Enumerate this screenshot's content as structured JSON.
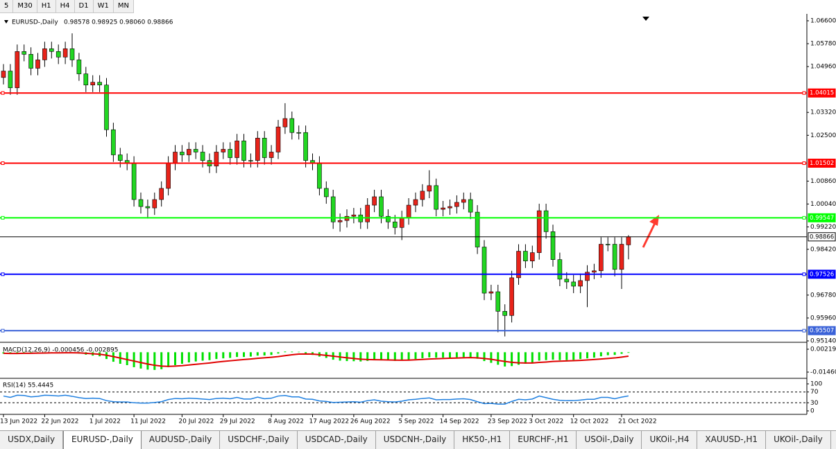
{
  "toolbar": {
    "timeframes": [
      "5",
      "M30",
      "H1",
      "H4",
      "D1",
      "W1",
      "MN"
    ]
  },
  "chart_data": [
    {
      "type": "candlestick",
      "title": "EURUSD-,Daily",
      "subtitle": "0.98578 0.98925 0.98060 0.98866",
      "up_color": "#e8231a",
      "down_color": "#22d622",
      "categories": [
        "13 Jun 2022",
        null,
        null,
        null,
        null,
        null,
        "22 Jun 2022",
        null,
        null,
        null,
        null,
        null,
        null,
        "1 Jul 2022",
        null,
        null,
        null,
        null,
        null,
        "11 Jul 2022",
        null,
        null,
        null,
        null,
        null,
        null,
        "20 Jul 2022",
        null,
        null,
        null,
        null,
        null,
        "29 Jul 2022",
        null,
        null,
        null,
        null,
        null,
        null,
        "8 Aug 2022",
        null,
        null,
        null,
        null,
        null,
        "17 Aug 2022",
        null,
        null,
        null,
        null,
        null,
        "26 Aug 2022",
        null,
        null,
        null,
        null,
        null,
        null,
        "5 Sep 2022",
        null,
        null,
        null,
        null,
        null,
        "14 Sep 2022",
        null,
        null,
        null,
        null,
        null,
        null,
        "23 Sep 2022",
        null,
        null,
        null,
        null,
        null,
        "3 Oct 2022",
        null,
        null,
        null,
        null,
        null,
        "12 Oct 2022",
        null,
        null,
        null,
        null,
        null,
        null,
        "21 Oct 2022",
        null
      ],
      "open": [
        1.0457,
        1.048,
        1.042,
        1.055,
        1.054,
        1.049,
        1.052,
        1.056,
        1.055,
        1.053,
        1.056,
        1.052,
        1.047,
        1.043,
        1.044,
        1.043,
        1.027,
        1.018,
        1.016,
        1.015,
        1.002,
        0.9995,
        0.999,
        1.002,
        1.006,
        1.015,
        1.019,
        1.018,
        1.02,
        1.019,
        1.016,
        1.014,
        1.019,
        1.02,
        1.017,
        1.023,
        1.016,
        1.016,
        1.024,
        1.017,
        1.019,
        1.028,
        1.031,
        1.026,
        1.026,
        1.016,
        1.015,
        1.006,
        1.003,
        0.994,
        0.9945,
        0.996,
        0.9965,
        0.994,
        1.0,
        1.003,
        0.996,
        0.994,
        0.992,
        0.9955,
        1.0,
        1.002,
        1.005,
        1.007,
        0.9985,
        0.999,
        0.9995,
        1.001,
        1.002,
        0.9975,
        0.985,
        0.9685,
        0.969,
        0.962,
        0.9605,
        0.974,
        0.9835,
        0.98,
        0.983,
        0.998,
        0.9905,
        0.9805,
        0.9735,
        0.9725,
        0.971,
        0.973,
        0.976,
        0.9765,
        0.986,
        0.986,
        0.977,
        0.98578
      ],
      "high": [
        1.0505,
        1.0505,
        1.0575,
        1.0575,
        1.0565,
        1.0545,
        1.0585,
        1.0585,
        1.0575,
        1.0585,
        1.0615,
        1.0545,
        1.0495,
        1.0465,
        1.0465,
        1.0455,
        1.0295,
        1.0205,
        1.0185,
        1.0175,
        1.0045,
        1.002,
        1.0045,
        1.0085,
        1.0175,
        1.0215,
        1.0215,
        1.0225,
        1.0225,
        1.0215,
        1.0185,
        1.0215,
        1.0225,
        1.0225,
        1.0255,
        1.0255,
        1.0185,
        1.0265,
        1.0265,
        1.0215,
        1.0305,
        1.0365,
        1.0335,
        1.0285,
        1.0285,
        1.0185,
        1.0175,
        1.0085,
        1.0055,
        0.997,
        0.9985,
        0.999,
        0.999,
        1.0025,
        1.0055,
        1.0055,
        0.9985,
        0.9965,
        0.998,
        1.0025,
        1.0045,
        1.0075,
        1.0125,
        1.0095,
        1.0015,
        1.002,
        1.0035,
        1.0045,
        1.0045,
        1.0,
        0.9875,
        0.9715,
        0.9715,
        0.9645,
        0.9765,
        0.986,
        0.986,
        0.9855,
        1.0005,
        1.0005,
        0.993,
        0.983,
        0.976,
        0.975,
        0.9755,
        0.9785,
        0.979,
        0.9885,
        0.9885,
        0.9885,
        0.9885,
        0.98925
      ],
      "low": [
        1.0432,
        1.0395,
        1.0395,
        1.0515,
        1.0465,
        1.0465,
        1.0495,
        1.0525,
        1.0505,
        1.0505,
        1.0495,
        1.0445,
        1.0405,
        1.0405,
        1.0405,
        1.0245,
        1.0155,
        1.0135,
        1.0125,
        0.9995,
        0.997,
        0.9952,
        0.9965,
        0.9995,
        1.0035,
        1.0125,
        1.0155,
        1.0155,
        1.0165,
        1.0135,
        1.0115,
        1.0115,
        1.0165,
        1.0145,
        1.0145,
        1.0135,
        1.0135,
        1.0135,
        1.0145,
        1.0145,
        1.0165,
        1.0255,
        1.0235,
        1.0235,
        1.0135,
        1.0125,
        1.0035,
        1.0005,
        0.9915,
        0.9905,
        0.992,
        0.9935,
        0.9915,
        0.9915,
        0.9975,
        0.9935,
        0.9915,
        0.9895,
        0.9875,
        0.993,
        0.9975,
        0.9995,
        1.0025,
        0.996,
        0.996,
        0.9965,
        0.997,
        0.9985,
        0.995,
        0.9825,
        0.966,
        0.966,
        0.9545,
        0.953,
        0.958,
        0.9715,
        0.9775,
        0.9775,
        0.9805,
        0.988,
        0.978,
        0.971,
        0.97,
        0.9685,
        0.9685,
        0.9635,
        0.9735,
        0.974,
        0.9835,
        0.9745,
        0.97,
        0.9806
      ],
      "close": [
        1.048,
        1.042,
        1.055,
        1.054,
        1.049,
        1.052,
        1.056,
        1.055,
        1.053,
        1.056,
        1.052,
        1.047,
        1.043,
        1.044,
        1.043,
        1.027,
        1.018,
        1.016,
        1.015,
        1.002,
        0.9995,
        0.999,
        1.002,
        1.006,
        1.015,
        1.019,
        1.018,
        1.02,
        1.019,
        1.016,
        1.014,
        1.019,
        1.02,
        1.017,
        1.023,
        1.016,
        1.016,
        1.024,
        1.017,
        1.019,
        1.028,
        1.031,
        1.026,
        1.026,
        1.016,
        1.015,
        1.006,
        1.003,
        0.994,
        0.9945,
        0.996,
        0.9965,
        0.994,
        1.0,
        1.003,
        0.996,
        0.994,
        0.992,
        0.9955,
        1.0,
        1.002,
        1.005,
        1.007,
        0.9985,
        0.999,
        0.9995,
        1.001,
        1.002,
        0.9975,
        0.985,
        0.9685,
        0.969,
        0.962,
        0.9605,
        0.974,
        0.9835,
        0.98,
        0.983,
        0.998,
        0.9905,
        0.9805,
        0.9735,
        0.9725,
        0.971,
        0.973,
        0.976,
        0.9765,
        0.986,
        0.986,
        0.977,
        0.986,
        0.98866
      ],
      "ylim": [
        0.95115,
        1.06798
      ],
      "yticks": [
        {
          "value": 1.066,
          "label": "1.06600"
        },
        {
          "value": 1.0578,
          "label": "1.05780"
        },
        {
          "value": 1.0496,
          "label": "1.04960"
        },
        {
          "value": 1.0332,
          "label": "1.03320"
        },
        {
          "value": 1.025,
          "label": "1.02500"
        },
        {
          "value": 1.0086,
          "label": "1.00860"
        },
        {
          "value": 1.0004,
          "label": "1.00040"
        },
        {
          "value": 0.9922,
          "label": "0.99220"
        },
        {
          "value": 0.9842,
          "label": "0.98420"
        },
        {
          "value": 0.9678,
          "label": "0.96780"
        },
        {
          "value": 0.9596,
          "label": "0.95960"
        },
        {
          "value": 0.9514,
          "label": "0.95140"
        }
      ],
      "level_values": [
        1.04015,
        1.01502,
        0.99547,
        0.98866,
        0.97526,
        0.95507
      ],
      "level_colors": [
        "#ff0000",
        "#ff0000",
        "#00ff00",
        "#000000",
        "#0000ff",
        "#3a62d8"
      ]
    },
    {
      "type": "bar",
      "title": "MACD(12,26,9) -0.000456 -0.002895",
      "series": [
        {
          "color": "#00e000",
          "values": [
            -0.001,
            -0.0012,
            -0.0008,
            -0.0006,
            -0.0007,
            -0.0005,
            -0.0003,
            -0.0002,
            -0.0003,
            -0.0002,
            -0.0004,
            -0.001,
            -0.0018,
            -0.0025,
            -0.003,
            -0.005,
            -0.007,
            -0.0085,
            -0.0095,
            -0.011,
            -0.012,
            -0.0128,
            -0.013,
            -0.0125,
            -0.011,
            -0.0095,
            -0.0085,
            -0.0075,
            -0.0068,
            -0.0062,
            -0.0058,
            -0.005,
            -0.0045,
            -0.0042,
            -0.0035,
            -0.0035,
            -0.0032,
            -0.0025,
            -0.0024,
            -0.002,
            -0.001,
            0.0005,
            0.0004,
            0.0003,
            -0.001,
            -0.002,
            -0.0032,
            -0.0042,
            -0.0055,
            -0.0062,
            -0.0065,
            -0.0066,
            -0.0068,
            -0.0064,
            -0.0058,
            -0.006,
            -0.0062,
            -0.0064,
            -0.0062,
            -0.0056,
            -0.005,
            -0.0044,
            -0.0038,
            -0.004,
            -0.004,
            -0.004,
            -0.0038,
            -0.0036,
            -0.0038,
            -0.0048,
            -0.0065,
            -0.0078,
            -0.0092,
            -0.0105,
            -0.0102,
            -0.0092,
            -0.0085,
            -0.0078,
            -0.0062,
            -0.0058,
            -0.0055,
            -0.0058,
            -0.0058,
            -0.0056,
            -0.005,
            -0.0045,
            -0.004,
            -0.003,
            -0.0022,
            -0.002,
            -0.0012,
            -0.000456
          ]
        },
        {
          "color": "#e00000",
          "values": [
            -0.0008,
            -0.0009,
            -0.0009,
            -0.0008,
            -0.0008,
            -0.0007,
            -0.0006,
            -0.0005,
            -0.0005,
            -0.0004,
            -0.0004,
            -0.0005,
            -0.0008,
            -0.0011,
            -0.0015,
            -0.0022,
            -0.0032,
            -0.0043,
            -0.0054,
            -0.0065,
            -0.0076,
            -0.0087,
            -0.0096,
            -0.0102,
            -0.0104,
            -0.0102,
            -0.0099,
            -0.0094,
            -0.0089,
            -0.0084,
            -0.0079,
            -0.0073,
            -0.0068,
            -0.0063,
            -0.0058,
            -0.0054,
            -0.005,
            -0.0045,
            -0.0041,
            -0.0037,
            -0.0032,
            -0.0025,
            -0.0019,
            -0.0014,
            -0.0013,
            -0.0014,
            -0.0018,
            -0.0023,
            -0.0029,
            -0.0035,
            -0.0041,
            -0.0046,
            -0.0051,
            -0.0054,
            -0.0055,
            -0.0056,
            -0.0057,
            -0.0058,
            -0.0059,
            -0.0058,
            -0.0056,
            -0.0053,
            -0.005,
            -0.0048,
            -0.0046,
            -0.0044,
            -0.0043,
            -0.0041,
            -0.004,
            -0.0042,
            -0.0046,
            -0.0052,
            -0.006,
            -0.0068,
            -0.0074,
            -0.0078,
            -0.0079,
            -0.0079,
            -0.0075,
            -0.0072,
            -0.0068,
            -0.0066,
            -0.0064,
            -0.0062,
            -0.006,
            -0.0057,
            -0.0054,
            -0.005,
            -0.0046,
            -0.0042,
            -0.0036,
            -0.002895
          ]
        }
      ],
      "ylim": [
        -0.01867,
        0.00626
      ],
      "yticks": [
        0.002193,
        {
          "value": -0.0146,
          "label": "-0.01460"
        }
      ]
    },
    {
      "type": "line",
      "title": "RSI(14) 55.4445",
      "color": "#1e7fe0",
      "values": [
        55,
        50,
        58,
        57,
        52,
        54,
        58,
        57,
        55,
        58,
        54,
        49,
        46,
        47,
        46,
        38,
        34,
        33,
        33,
        30,
        29,
        29,
        31,
        34,
        42,
        46,
        45,
        47,
        46,
        44,
        42,
        46,
        47,
        45,
        50,
        44,
        44,
        51,
        45,
        47,
        55,
        57,
        52,
        52,
        44,
        43,
        37,
        35,
        31,
        32,
        33,
        34,
        32,
        38,
        41,
        36,
        34,
        33,
        36,
        41,
        43,
        46,
        48,
        41,
        42,
        42,
        44,
        45,
        42,
        34,
        27,
        28,
        25,
        25,
        35,
        43,
        41,
        44,
        55,
        49,
        43,
        39,
        38,
        38,
        40,
        43,
        43,
        50,
        50,
        45,
        51,
        55.4445
      ],
      "ylim": [
        -12.8,
        115.4
      ],
      "yticks": [
        100,
        70,
        30,
        0
      ],
      "levels": [
        70,
        30
      ]
    }
  ],
  "tabs": [
    "USDX,Daily",
    "EURUSD-,Daily",
    "AUDUSD-,Daily",
    "USDCHF-,Daily",
    "USDCAD-,Daily",
    "USDCNH-,Daily",
    "HK50-,H1",
    "EURCHF-,H1",
    "USOil-,Daily",
    "UKOil-,H4",
    "XAUUSD-,H1",
    "UKOil-,Daily"
  ]
}
